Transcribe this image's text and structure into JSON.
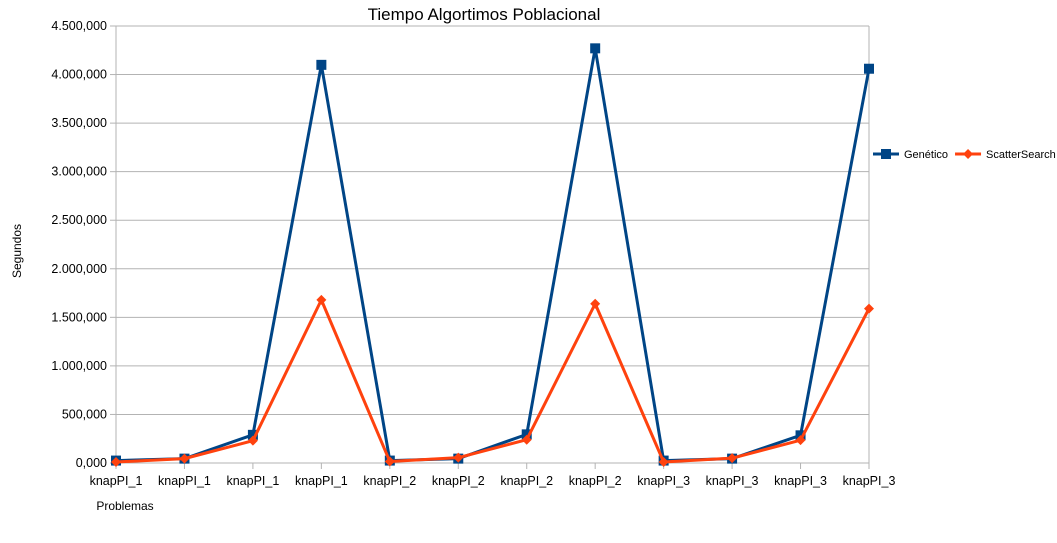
{
  "chart_data": {
    "type": "line",
    "title": "Tiempo Algortimos Poblacional",
    "xlabel": "Problemas",
    "ylabel": "Segundos",
    "categories": [
      "knapPI_1",
      "knapPI_1",
      "knapPI_1",
      "knapPI_1",
      "knapPI_2",
      "knapPI_2",
      "knapPI_2",
      "knapPI_2",
      "knapPI_3",
      "knapPI_3",
      "knapPI_3",
      "knapPI_3"
    ],
    "ylim": [
      0,
      4500000
    ],
    "yticks": [
      0,
      500000,
      1000000,
      1500000,
      2000000,
      2500000,
      3000000,
      3500000,
      4000000,
      4500000
    ],
    "ytick_labels": [
      "0,000",
      "500,000",
      "1.000,000",
      "1.500,000",
      "2.000,000",
      "2.500,000",
      "3.000,000",
      "3.500,000",
      "4.000,000",
      "4.500,000"
    ],
    "grid": true,
    "legend_position": "right",
    "series": [
      {
        "name": "Genético",
        "color": "#004586",
        "marker": "square",
        "values": [
          25000,
          45000,
          290000,
          4100000,
          25000,
          45000,
          295000,
          4270000,
          25000,
          45000,
          285000,
          4060000
        ]
      },
      {
        "name": "ScatterSearch",
        "color": "#ff420e",
        "marker": "diamond",
        "values": [
          10000,
          45000,
          230000,
          1680000,
          15000,
          55000,
          240000,
          1640000,
          10000,
          50000,
          235000,
          1590000
        ]
      }
    ]
  }
}
